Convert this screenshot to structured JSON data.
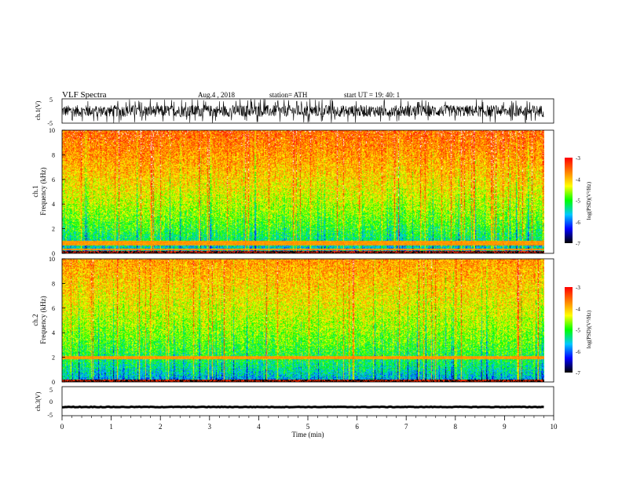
{
  "header": {
    "title": "VLF  Spectra",
    "date": "Aug.4  , 2018",
    "station": "station= ATH",
    "start": "start  UT  =    19: 40: 1"
  },
  "chart_data": [
    {
      "type": "line",
      "panel": "ch1-waveform",
      "ylabel": "ch.1(V)",
      "ylim": [
        -5,
        5
      ],
      "y_ticks": [
        "5",
        "-5"
      ],
      "color": "#000000",
      "note_values": "dense noisy waveform, amplitude about ±3 V, spikes to ±5 V"
    },
    {
      "type": "heatmap",
      "panel": "ch1-spectrogram",
      "ylabel": "ch.1\nFrequency (kHz)",
      "ylim": [
        0,
        10
      ],
      "y_ticks": [
        "0",
        "2",
        "4",
        "6",
        "8",
        "10"
      ],
      "colorbar": {
        "label": "log(PSD)(V²/Hz)",
        "range": [
          -7,
          -3
        ],
        "ticks": [
          "-3",
          "-4",
          "-5",
          "-6",
          "-7"
        ]
      },
      "description_values": {
        "low_freq_level": -6,
        "high_freq_level": -3.5,
        "band_lines_khz": [
          0.3,
          0.7,
          0.9
        ]
      }
    },
    {
      "type": "heatmap",
      "panel": "ch2-spectrogram",
      "ylabel": "ch.2\nFrequency (kHz)",
      "ylim": [
        0,
        10
      ],
      "y_ticks": [
        "0",
        "2",
        "4",
        "6",
        "8",
        "10"
      ],
      "colorbar": {
        "label": "log(PSD)(V²/Hz)",
        "range": [
          -7,
          -3
        ],
        "ticks": [
          "-3",
          "-4",
          "-5",
          "-6",
          "-7"
        ]
      },
      "description_values": {
        "low_freq_level": -6,
        "high_freq_level": -3.8,
        "band_lines_khz": [
          1.9,
          2.0
        ]
      }
    },
    {
      "type": "line",
      "panel": "ch3-waveform",
      "ylabel": "ch.3(V)",
      "ylim": [
        -5,
        5
      ],
      "y_ticks": [
        "5",
        "0",
        "-5"
      ],
      "color": "#000000",
      "note_values": "flat trace near -2 V"
    }
  ],
  "time_axis": {
    "xlabel": "Time  (min)",
    "xlim": [
      0,
      10
    ],
    "ticks": [
      "0",
      "1",
      "2",
      "3",
      "4",
      "5",
      "6",
      "7",
      "8",
      "9",
      "10"
    ],
    "data_end": 9.8
  },
  "colors": {
    "scale": [
      "#000000",
      "#0000ff",
      "#00c8ff",
      "#00ff00",
      "#ffff00",
      "#ff8000",
      "#ff0000",
      "#ffffff"
    ]
  }
}
